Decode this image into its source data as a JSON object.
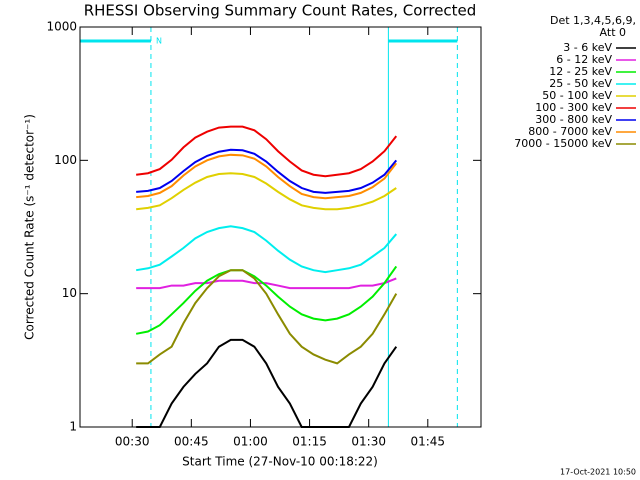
{
  "chart_data": {
    "type": "line",
    "title": "RHESSI Observing Summary Count Rates, Corrected",
    "x_label": "Start Time (27-Nov-10 00:18:22)",
    "y_label": "Corrected Count Rate (s⁻¹ detector⁻¹)",
    "legend_header": [
      "Det 1,3,4,5,6,9,",
      "Att 0"
    ],
    "footer": "17-Oct-2021 10:50",
    "log_y": true,
    "xlim": [
      16.75,
      118.5
    ],
    "ylim": [
      1,
      1000
    ],
    "xticks": [
      {
        "value": 30,
        "label": "00:30"
      },
      {
        "value": 45,
        "label": "00:45"
      },
      {
        "value": 60,
        "label": "01:00"
      },
      {
        "value": 75,
        "label": "01:15"
      },
      {
        "value": 90,
        "label": "01:30"
      },
      {
        "value": 105,
        "label": "01:45"
      }
    ],
    "yticks": [
      1,
      10,
      100,
      1000
    ],
    "night": {
      "label": "N",
      "color": "#00e5ee",
      "intervals": [
        [
          16.75,
          34.75
        ],
        [
          95,
          112.5
        ]
      ]
    },
    "x": [
      31,
      34,
      37,
      40,
      43,
      46,
      49,
      52,
      55,
      58,
      61,
      64,
      67,
      70,
      73,
      76,
      79,
      82,
      85,
      88,
      91,
      94,
      97
    ],
    "series": [
      {
        "name": "3 - 6 keV",
        "color": "#000000",
        "values": [
          1,
          1,
          1,
          1.5,
          2,
          2.5,
          3,
          4,
          4.5,
          4.5,
          4,
          3,
          2,
          1.5,
          1,
          1,
          1,
          1,
          1,
          1.5,
          2,
          3,
          4
        ]
      },
      {
        "name": "6 - 12 keV",
        "color": "#e020e0",
        "values": [
          11,
          11,
          11,
          11.5,
          11.5,
          12,
          12,
          12.5,
          12.5,
          12.5,
          12,
          12,
          11.5,
          11,
          11,
          11,
          11,
          11,
          11,
          11.5,
          11.5,
          12,
          13
        ]
      },
      {
        "name": "12 - 25 keV",
        "color": "#00ee00",
        "values": [
          5,
          5.2,
          5.8,
          7,
          8.5,
          10.5,
          12.5,
          14,
          15,
          15,
          13.5,
          11.5,
          9.5,
          8,
          7,
          6.5,
          6.3,
          6.5,
          7,
          8,
          9.5,
          12,
          16
        ]
      },
      {
        "name": "25 - 50 keV",
        "color": "#00eeee",
        "values": [
          15,
          15.5,
          16.5,
          19,
          22,
          26,
          29,
          31,
          32,
          31,
          29,
          25,
          21,
          18,
          16,
          15,
          14.5,
          15,
          15.5,
          16.5,
          19,
          22,
          28
        ]
      },
      {
        "name": "50 - 100 keV",
        "color": "#e0d000",
        "values": [
          43,
          44,
          46,
          52,
          60,
          68,
          75,
          79,
          80,
          79,
          75,
          67,
          58,
          51,
          46,
          44,
          43,
          43,
          44,
          46,
          49,
          54,
          62
        ]
      },
      {
        "name": "100 - 300 keV",
        "color": "#ee0000",
        "values": [
          78,
          80,
          86,
          101,
          125,
          148,
          164,
          176,
          179,
          179,
          168,
          144,
          117,
          98,
          84,
          78,
          76,
          78,
          80,
          86,
          98,
          117,
          152
        ]
      },
      {
        "name": "300 - 800 keV",
        "color": "#0000ee",
        "values": [
          58,
          59,
          62,
          70,
          83,
          97,
          108,
          116,
          120,
          119,
          112,
          98,
          82,
          70,
          62,
          58,
          57,
          58,
          59,
          62,
          68,
          78,
          100
        ]
      },
      {
        "name": "800 - 7000 keV",
        "color": "#ff8c00",
        "values": [
          53,
          54,
          57,
          64,
          77,
          90,
          100,
          107,
          110,
          109,
          103,
          90,
          75,
          64,
          56,
          53,
          52,
          53,
          54,
          57,
          63,
          73,
          95
        ]
      },
      {
        "name": "7000 - 15000 keV",
        "color": "#8b8b00",
        "values": [
          3,
          3,
          3.5,
          4,
          6,
          8.5,
          11,
          13.5,
          15,
          15,
          13,
          10,
          7,
          5,
          4,
          3.5,
          3.2,
          3,
          3.5,
          4,
          5,
          7,
          10
        ]
      }
    ]
  }
}
